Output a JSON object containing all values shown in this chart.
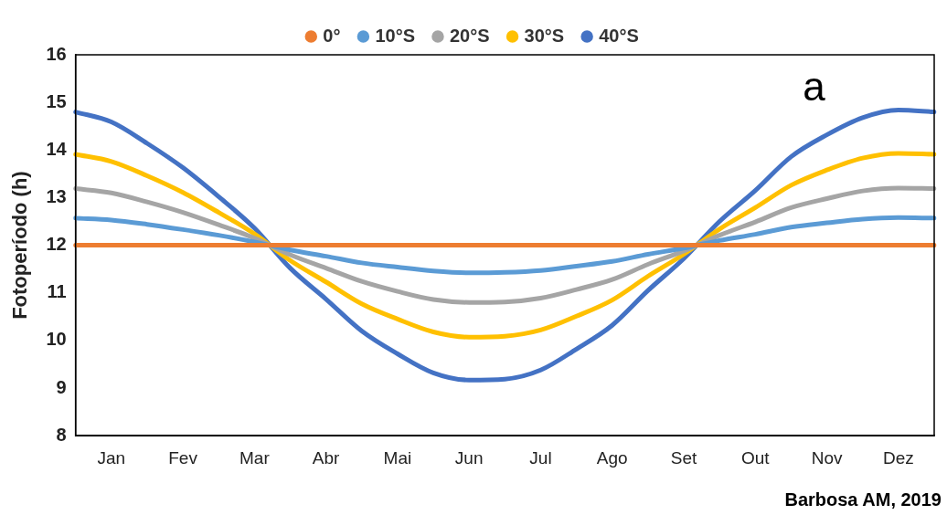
{
  "chart_data": {
    "type": "line",
    "ylabel": "Fotoperíodo (h)",
    "categories": [
      null,
      "Jan",
      null,
      "Fev",
      null,
      "Mar",
      null,
      "Abr",
      null,
      "Mai",
      null,
      "Jun",
      null,
      "Jul",
      null,
      "Ago",
      null,
      "Set",
      null,
      "Out",
      null,
      "Nov",
      null,
      "Dez",
      null
    ],
    "ylim": [
      8,
      16
    ],
    "yticks": [
      8,
      9,
      10,
      11,
      12,
      13,
      14,
      15,
      16
    ],
    "grid": false,
    "legend": "top",
    "series": [
      {
        "name": "0°",
        "color": "#ed7d31",
        "values": [
          12,
          12,
          12,
          12,
          12,
          12,
          12,
          12,
          12,
          12,
          12,
          12,
          12,
          12,
          12,
          12,
          12,
          12,
          12,
          12,
          12,
          12,
          12,
          12,
          12
        ]
      },
      {
        "name": "10°S",
        "color": "#5b9bd5",
        "values": [
          12.57,
          12.53,
          12.44,
          12.33,
          12.21,
          12.07,
          11.9,
          11.77,
          11.63,
          11.54,
          11.46,
          11.42,
          11.43,
          11.47,
          11.56,
          11.66,
          11.81,
          11.94,
          12.1,
          12.23,
          12.38,
          12.47,
          12.55,
          12.58,
          12.57
        ]
      },
      {
        "name": "20°S",
        "color": "#a5a5a5",
        "values": [
          13.19,
          13.1,
          12.91,
          12.69,
          12.43,
          12.15,
          11.8,
          11.52,
          11.24,
          11.03,
          10.86,
          10.8,
          10.81,
          10.89,
          11.07,
          11.28,
          11.6,
          11.88,
          12.21,
          12.49,
          12.79,
          12.98,
          13.14,
          13.2,
          13.19
        ]
      },
      {
        "name": "30°S",
        "color": "#ffc000",
        "values": [
          13.91,
          13.76,
          13.46,
          13.11,
          12.69,
          12.24,
          11.68,
          11.23,
          10.77,
          10.45,
          10.18,
          10.07,
          10.09,
          10.22,
          10.51,
          10.85,
          11.35,
          11.81,
          12.34,
          12.79,
          13.26,
          13.58,
          13.83,
          13.93,
          13.91
        ]
      },
      {
        "name": "40°S",
        "color": "#4472c4",
        "values": [
          14.8,
          14.59,
          14.14,
          13.63,
          13.02,
          12.36,
          11.52,
          10.87,
          10.2,
          9.72,
          9.32,
          9.17,
          9.19,
          9.38,
          9.82,
          10.32,
          11.05,
          11.72,
          12.5,
          13.15,
          13.86,
          14.32,
          14.68,
          14.84,
          14.8
        ]
      }
    ],
    "annotations": [
      "a",
      "Barbosa AM, 2019"
    ]
  }
}
